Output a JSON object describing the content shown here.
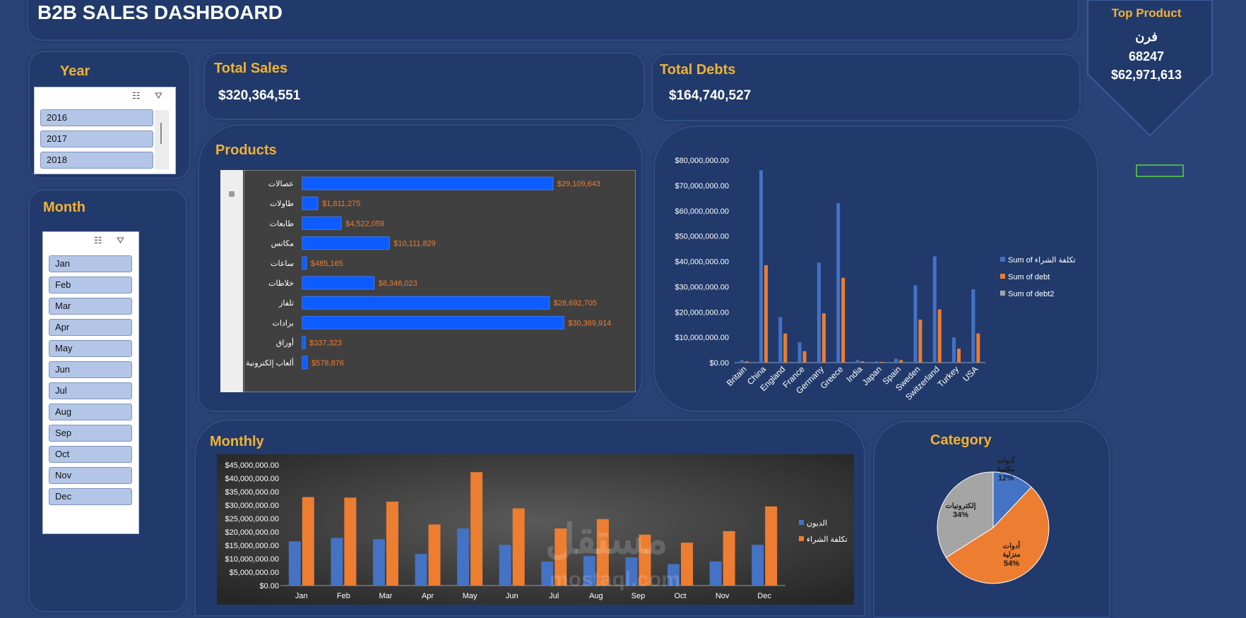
{
  "header": {
    "title": "B2B SALES DASHBOARD"
  },
  "top_product": {
    "label": "Top Product",
    "name": "فرن",
    "units": "68247",
    "value": "$62,971,613"
  },
  "year_slicer": {
    "title": "Year",
    "items": [
      "2016",
      "2017",
      "2018"
    ]
  },
  "month_slicer": {
    "title": "Month",
    "items": [
      "Jan",
      "Feb",
      "Mar",
      "Apr",
      "May",
      "Jun",
      "Jul",
      "Aug",
      "Sep",
      "Oct",
      "Nov",
      "Dec"
    ]
  },
  "kpis": {
    "total_sales_label": "Total Sales",
    "total_sales_value": "$320,364,551",
    "total_debts_label": "Total Debts",
    "total_debts_value": "$164,740,527"
  },
  "products": {
    "title": "Products"
  },
  "monthly": {
    "title": "Monthly"
  },
  "category": {
    "title": "Category"
  },
  "watermark": {
    "brand": "مستقل",
    "url": "mostaql.com"
  },
  "colors": {
    "accent": "#f2b233",
    "bar_blue": "#0d5cff",
    "series_blue": "#4472c4",
    "series_orange": "#ed7d31",
    "series_gray": "#a5a5a5"
  },
  "chart_data": [
    {
      "id": "products",
      "type": "bar",
      "orientation": "horizontal",
      "categories": [
        "عصالات",
        "طاولات",
        "طابعات",
        "مكانس",
        "ساعات",
        "خلاطات",
        "تلفاز",
        "برادات",
        "أوراق",
        "ألعاب إلكترونية"
      ],
      "values": [
        29109643,
        1811275,
        4522059,
        10111829,
        485165,
        8346023,
        28692705,
        30369914,
        337323,
        578876
      ],
      "labels": [
        "$29,109,643",
        "$1,811,275",
        "$4,522,059",
        "$10,111,829",
        "$485,165",
        "$8,346,023",
        "$28,692,705",
        "$30,369,914",
        "$337,323",
        "$578,876"
      ],
      "xlim": [
        0,
        31500000
      ]
    },
    {
      "id": "countries",
      "type": "bar",
      "categories": [
        "Britain",
        "China",
        "England",
        "France",
        "Germany",
        "Greece",
        "India",
        "Japan",
        "Spain",
        "Sweden",
        "Switzerland",
        "Turkey",
        "USA"
      ],
      "series": [
        {
          "name": "Sum of تكلفة الشراء",
          "color": "#4472c4",
          "values": [
            1000000,
            76000000,
            18000000,
            8000000,
            39500000,
            63000000,
            1000000,
            500000,
            1500000,
            30500000,
            42000000,
            10000000,
            29000000
          ]
        },
        {
          "name": "Sum of debt",
          "color": "#ed7d31",
          "values": [
            500000,
            38500000,
            11500000,
            4500000,
            19500000,
            33500000,
            500000,
            300000,
            1000000,
            17000000,
            21000000,
            5500000,
            11500000
          ]
        },
        {
          "name": "Sum of debt2",
          "color": "#a5a5a5",
          "values": [
            0,
            0,
            0,
            0,
            0,
            0,
            0,
            0,
            0,
            0,
            0,
            0,
            0
          ]
        }
      ],
      "yticks": [
        "$0.00",
        "$10,000,000.00",
        "$20,000,000.00",
        "$30,000,000.00",
        "$40,000,000.00",
        "$50,000,000.00",
        "$60,000,000.00",
        "$70,000,000.00",
        "$80,000,000.00"
      ],
      "ylim": [
        0,
        80000000
      ],
      "legend": "right"
    },
    {
      "id": "monthly",
      "type": "bar",
      "categories": [
        "Jan",
        "Feb",
        "Mar",
        "Apr",
        "May",
        "Jun",
        "Jul",
        "Aug",
        "Sep",
        "Oct",
        "Nov",
        "Dec"
      ],
      "series": [
        {
          "name": "الديون",
          "color": "#4472c4",
          "values": [
            16500000,
            17800000,
            17300000,
            11800000,
            21300000,
            15200000,
            9000000,
            11000000,
            10500000,
            8000000,
            9000000,
            15200000
          ]
        },
        {
          "name": "تكلفة الشراء",
          "color": "#ed7d31",
          "values": [
            33000000,
            32800000,
            31300000,
            22800000,
            42300000,
            28800000,
            21300000,
            24800000,
            19000000,
            16000000,
            20300000,
            29500000
          ]
        }
      ],
      "yticks": [
        "$0.00",
        "$5,000,000.00",
        "$10,000,000.00",
        "$15,000,000.00",
        "$20,000,000.00",
        "$25,000,000.00",
        "$30,000,000.00",
        "$35,000,000.00",
        "$40,000,000.00",
        "$45,000,000.00"
      ],
      "ylim": [
        0,
        45000000
      ],
      "legend": "right"
    },
    {
      "id": "category",
      "type": "pie",
      "slices": [
        {
          "label": "أدوات مكتبية",
          "pct": "12%",
          "value": 12,
          "color": "#4472c4"
        },
        {
          "label": "أدوات منزلية",
          "pct": "54%",
          "value": 54,
          "color": "#ed7d31"
        },
        {
          "label": "إلكترونيات",
          "pct": "34%",
          "value": 34,
          "color": "#a5a5a5"
        }
      ]
    }
  ]
}
